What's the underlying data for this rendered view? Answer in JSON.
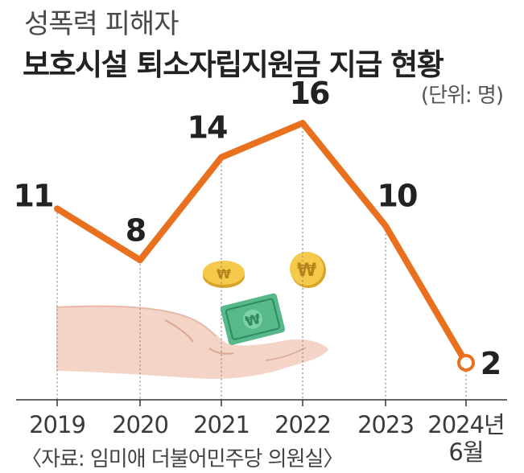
{
  "header": {
    "title_line1": "성폭력 피해자",
    "title_line2": "보호시설 퇴소자립지원금 지급 현황",
    "unit": "(단위: 명)"
  },
  "footer": {
    "source": "〈자료: 임미애 더불어민주당 의원실〉"
  },
  "colors": {
    "line": "#e8701e",
    "axis": "#333333",
    "guide": "#888888"
  },
  "chart_data": {
    "type": "line",
    "categories": [
      "2019",
      "2020",
      "2021",
      "2022",
      "2023",
      "2024년 6월"
    ],
    "category_lines": [
      [
        "2019"
      ],
      [
        "2020"
      ],
      [
        "2021"
      ],
      [
        "2022"
      ],
      [
        "2023"
      ],
      [
        "2024년",
        "6월"
      ]
    ],
    "series": [
      {
        "values": [
          11,
          8,
          14,
          16,
          10,
          2
        ]
      }
    ],
    "title": "성폭력 피해자 보호시설 퇴소자립지원금 지급 현황",
    "unit": "(단위: 명)",
    "ylim": [
      0,
      20
    ],
    "grid": false,
    "legend": "none"
  }
}
